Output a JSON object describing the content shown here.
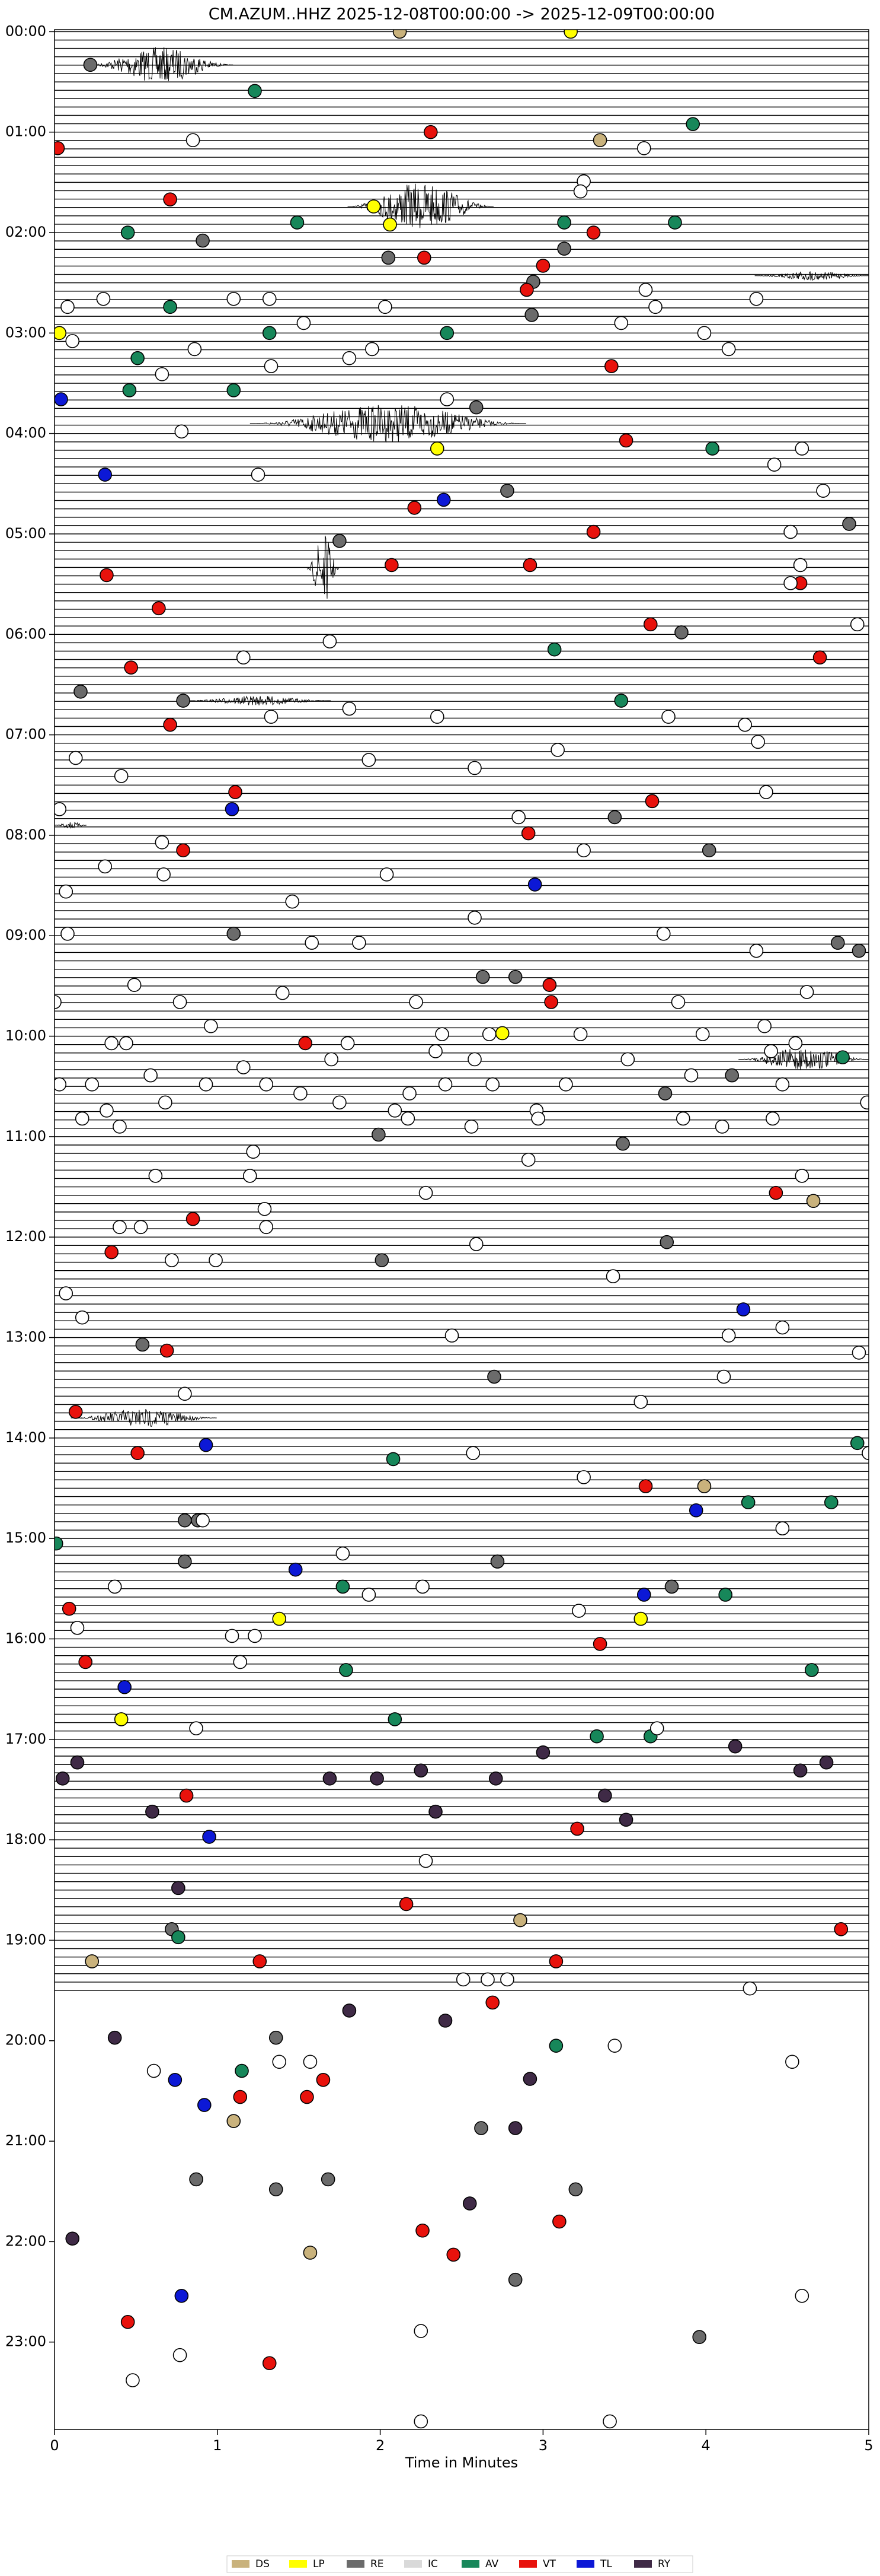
{
  "chart_data": {
    "type": "scatter",
    "title": "CM.AZUM..HHZ  2025-12-08T00:00:00 -> 2025-12-09T00:00:00",
    "x_label": "Time in Minutes",
    "xlim": [
      0,
      5
    ],
    "xticks": [
      0,
      1,
      2,
      3,
      4,
      5
    ],
    "ylim": [
      23.87,
      -0.02
    ],
    "yticks": [
      {
        "value": 0,
        "label": "00:00"
      },
      {
        "value": 1,
        "label": "01:00"
      },
      {
        "value": 2,
        "label": "02:00"
      },
      {
        "value": 3,
        "label": "03:00"
      },
      {
        "value": 4,
        "label": "04:00"
      },
      {
        "value": 5,
        "label": "05:00"
      },
      {
        "value": 6,
        "label": "06:00"
      },
      {
        "value": 7,
        "label": "07:00"
      },
      {
        "value": 8,
        "label": "08:00"
      },
      {
        "value": 9,
        "label": "09:00"
      },
      {
        "value": 10,
        "label": "10:00"
      },
      {
        "value": 11,
        "label": "11:00"
      },
      {
        "value": 12,
        "label": "12:00"
      },
      {
        "value": 13,
        "label": "13:00"
      },
      {
        "value": 14,
        "label": "14:00"
      },
      {
        "value": 15,
        "label": "15:00"
      },
      {
        "value": 16,
        "label": "16:00"
      },
      {
        "value": 17,
        "label": "17:00"
      },
      {
        "value": 18,
        "label": "18:00"
      },
      {
        "value": 19,
        "label": "19:00"
      },
      {
        "value": 20,
        "label": "20:00"
      },
      {
        "value": 21,
        "label": "21:00"
      },
      {
        "value": 22,
        "label": "22:00"
      },
      {
        "value": 23,
        "label": "23:00"
      }
    ],
    "legend": "lower center",
    "series": [
      {
        "name": "DS",
        "color": "#c9b27c",
        "x": [
          2.12,
          3.35,
          4.66,
          3.99,
          2.86,
          0.23,
          1.57,
          1.1
        ],
        "values": [
          0,
          1.08,
          11.64,
          14.48,
          18.8,
          19.21,
          22.11,
          20.8
        ]
      },
      {
        "name": "LP",
        "color": "#ffff00",
        "x": [
          3.17,
          0.03,
          1.96,
          2.06,
          2.35,
          2.75,
          1.38,
          3.6,
          0.41
        ],
        "values": [
          0,
          3.0,
          1.74,
          1.92,
          4.15,
          9.97,
          15.8,
          15.8,
          16.8
        ]
      },
      {
        "name": "RE",
        "color": "#6b6b6b",
        "x": [
          0.22,
          0.91,
          2.05,
          3.13,
          2.94,
          2.59,
          2.93,
          2.78,
          4.88,
          1.75,
          3.85,
          0.16,
          0.79,
          3.44,
          4.02,
          1.1,
          4.81,
          4.94,
          2.63,
          2.83,
          3.75,
          4.16,
          3.49,
          1.99,
          3.76,
          0.54,
          2.7,
          0.8,
          0.88,
          0.8,
          2.72,
          3.79,
          2.01,
          0.72,
          1.36,
          0.87,
          1.36,
          1.68,
          3.2,
          2.83,
          3.96,
          2.62
        ],
        "values": [
          0.33,
          2.08,
          2.25,
          2.16,
          2.49,
          3.74,
          2.82,
          4.57,
          4.9,
          5.07,
          5.98,
          6.57,
          6.66,
          7.82,
          8.15,
          8.98,
          9.07,
          9.15,
          9.41,
          9.41,
          10.57,
          10.39,
          11.07,
          10.98,
          12.05,
          13.07,
          13.39,
          14.82,
          14.82,
          15.23,
          15.23,
          15.48,
          12.23,
          18.89,
          19.97,
          21.38,
          21.48,
          21.38,
          21.48,
          22.38,
          22.95,
          20.87
        ]
      },
      {
        "name": "IC",
        "color": "#d9d9d9",
        "x": [],
        "values": []
      },
      {
        "name": "AV",
        "color": "#17875a",
        "x": [
          1.23,
          3.92,
          0.45,
          1.49,
          3.13,
          3.81,
          0.71,
          2.41,
          1.32,
          0.51,
          0.46,
          1.1,
          4.04,
          3.07,
          3.48,
          2.08,
          4.93,
          4.26,
          4.77,
          0.01,
          1.77,
          4.12,
          1.79,
          4.65,
          2.09,
          3.33,
          3.66,
          0.76,
          1.15,
          3.08,
          4.84
        ],
        "values": [
          0.59,
          0.92,
          2.0,
          1.9,
          1.9,
          1.9,
          2.74,
          3.0,
          3.0,
          3.25,
          3.57,
          3.57,
          4.15,
          6.15,
          6.66,
          14.21,
          14.05,
          14.64,
          14.64,
          15.05,
          15.48,
          15.56,
          16.31,
          16.31,
          16.8,
          16.97,
          16.97,
          18.97,
          20.3,
          20.05,
          10.21
        ]
      },
      {
        "name": "VT",
        "color": "#e8120c",
        "x": [
          2.31,
          0.02,
          0.71,
          3.31,
          2.27,
          3.0,
          2.9,
          3.42,
          3.51,
          2.21,
          3.31,
          2.07,
          2.92,
          0.32,
          4.58,
          0.64,
          3.66,
          0.47,
          4.7,
          0.71,
          1.11,
          3.67,
          0.79,
          2.91,
          3.04,
          3.05,
          1.54,
          4.43,
          0.85,
          0.35,
          0.69,
          0.13,
          0.51,
          3.63,
          0.09,
          3.35,
          0.19,
          0.81,
          3.21,
          2.16,
          1.26,
          3.08,
          2.69,
          1.14,
          1.55,
          1.65,
          2.26,
          2.45,
          3.1,
          0.45,
          1.32,
          4.83
        ],
        "values": [
          1.0,
          1.16,
          1.67,
          2.0,
          2.25,
          2.33,
          2.57,
          3.33,
          4.07,
          4.74,
          4.98,
          5.31,
          5.31,
          5.41,
          5.49,
          5.74,
          5.9,
          6.33,
          6.23,
          6.9,
          7.57,
          7.66,
          8.15,
          7.98,
          9.49,
          9.66,
          10.07,
          11.56,
          11.82,
          12.15,
          13.13,
          13.74,
          14.15,
          14.48,
          15.7,
          16.05,
          16.23,
          17.56,
          17.89,
          18.64,
          19.21,
          19.21,
          19.62,
          20.56,
          20.56,
          20.39,
          21.89,
          22.13,
          21.8,
          22.8,
          23.21,
          18.89
        ]
      },
      {
        "name": "TL",
        "color": "#0c18d6",
        "x": [
          0.04,
          0.31,
          2.39,
          2.95,
          1.09,
          0.93,
          1.48,
          3.62,
          0.43,
          0.95,
          3.94,
          4.23,
          0.74,
          0.92,
          0.78
        ],
        "values": [
          3.66,
          4.41,
          4.66,
          8.49,
          7.74,
          14.07,
          15.31,
          15.56,
          16.48,
          17.97,
          14.72,
          12.72,
          20.39,
          20.64,
          22.54
        ]
      },
      {
        "name": "RY",
        "color": "#3f2a46",
        "x": [
          0.76,
          0.05,
          0.14,
          0.6,
          2.34,
          1.69,
          2.71,
          3.0,
          3.38,
          4.18,
          4.58,
          4.74,
          3.51,
          1.81,
          0.37,
          2.4,
          2.83,
          2.55,
          0.11,
          1.98,
          2.25,
          2.92
        ],
        "values": [
          18.48,
          17.39,
          17.23,
          17.72,
          17.72,
          17.39,
          17.39,
          17.13,
          17.56,
          17.07,
          17.31,
          17.23,
          17.8,
          19.7,
          19.97,
          19.8,
          20.87,
          21.62,
          21.97,
          17.39,
          17.31,
          20.38
        ]
      },
      {
        "color": "#ffffff",
        "x": [
          0.85,
          3.25,
          3.23,
          3.62,
          0.3,
          0.08,
          1.1,
          1.32,
          2.03,
          3.63,
          3.69,
          4.31,
          1.53,
          3.48,
          3.99,
          0.11,
          0.86,
          1.33,
          1.81,
          1.95,
          4.14,
          0.66,
          2.41,
          0.78,
          4.59,
          4.42,
          4.72,
          1.25,
          4.52,
          4.58,
          4.52,
          1.69,
          1.16,
          4.93,
          1.33,
          1.81,
          2.35,
          3.77,
          4.24,
          1.93,
          4.32,
          0.13,
          0.41,
          2.58,
          3.09,
          4.37,
          0.03,
          2.85,
          0.66,
          0.31,
          0.67,
          2.04,
          3.25,
          0.07,
          1.46,
          2.58,
          1.87,
          0.08,
          1.58,
          3.74,
          4.31,
          4.62,
          0.49,
          0.77,
          1.4,
          2.22,
          3.83,
          0.0,
          0.96,
          2.67,
          2.38,
          4.36,
          4.55,
          0.44,
          0.35,
          1.8,
          3.23,
          3.98,
          0.59,
          1.16,
          1.7,
          2.34,
          2.58,
          3.52,
          4.4,
          4.99,
          0.03,
          0.23,
          0.93,
          1.3,
          1.51,
          2.18,
          2.4,
          2.69,
          3.14,
          3.91,
          4.47,
          0.32,
          0.68,
          1.75,
          2.09,
          2.96,
          3.86,
          0.17,
          0.4,
          1.22,
          2.17,
          2.56,
          2.97,
          4.1,
          4.41,
          0.62,
          1.2,
          2.28,
          2.91,
          4.59,
          0.4,
          0.53,
          1.29,
          1.3,
          0.72,
          0.99,
          2.59,
          3.43,
          0.07,
          0.17,
          4.47,
          2.44,
          4.14,
          4.94,
          3.6,
          0.8,
          4.11,
          5.0,
          2.57,
          3.25,
          4.47,
          1.77,
          0.91,
          0.37,
          1.93,
          2.26,
          3.22,
          0.14,
          1.09,
          1.23,
          1.14,
          0.87,
          3.7,
          2.28,
          2.51,
          2.66,
          2.78,
          4.27,
          3.44,
          0.61,
          1.38,
          1.57,
          4.53,
          2.25,
          0.77,
          0.48,
          2.25,
          3.41,
          4.59
        ],
        "values": [
          1.08,
          1.49,
          1.59,
          1.16,
          2.66,
          2.74,
          2.66,
          2.66,
          2.74,
          2.57,
          2.74,
          2.66,
          2.9,
          2.9,
          3.0,
          3.08,
          3.16,
          3.33,
          3.25,
          3.16,
          3.16,
          3.41,
          3.66,
          3.98,
          4.15,
          4.31,
          4.57,
          4.41,
          4.98,
          5.31,
          5.49,
          6.07,
          6.23,
          5.9,
          6.82,
          6.74,
          6.82,
          6.82,
          6.9,
          7.25,
          7.07,
          7.23,
          7.41,
          7.33,
          7.15,
          7.57,
          7.74,
          7.82,
          8.07,
          8.31,
          8.39,
          8.39,
          8.15,
          8.56,
          8.66,
          8.82,
          9.07,
          8.98,
          9.07,
          8.98,
          9.15,
          9.56,
          9.49,
          9.66,
          9.57,
          9.66,
          9.66,
          9.66,
          9.9,
          9.98,
          9.98,
          9.9,
          10.07,
          10.07,
          10.07,
          10.07,
          9.98,
          9.98,
          10.39,
          10.31,
          10.23,
          10.15,
          10.23,
          10.23,
          10.15,
          10.66,
          10.48,
          10.48,
          10.48,
          10.48,
          10.57,
          10.57,
          10.48,
          10.48,
          10.48,
          10.39,
          10.48,
          10.74,
          10.66,
          10.66,
          10.74,
          10.74,
          10.82,
          10.82,
          10.9,
          11.15,
          10.82,
          10.9,
          10.82,
          10.9,
          10.82,
          11.39,
          11.39,
          11.56,
          11.23,
          11.39,
          11.9,
          11.9,
          11.72,
          11.9,
          12.23,
          12.23,
          12.07,
          12.39,
          12.56,
          12.8,
          12.9,
          12.98,
          12.98,
          13.15,
          13.64,
          13.56,
          13.39,
          14.15,
          14.15,
          14.39,
          14.9,
          15.15,
          14.82,
          15.48,
          15.56,
          15.48,
          15.72,
          15.89,
          15.97,
          15.97,
          16.23,
          16.89,
          16.89,
          18.21,
          19.39,
          19.39,
          19.39,
          19.48,
          20.05,
          20.3,
          20.21,
          20.21,
          20.21,
          22.89,
          23.13,
          23.38,
          23.79,
          23.79,
          22.54
        ]
      }
    ]
  }
}
